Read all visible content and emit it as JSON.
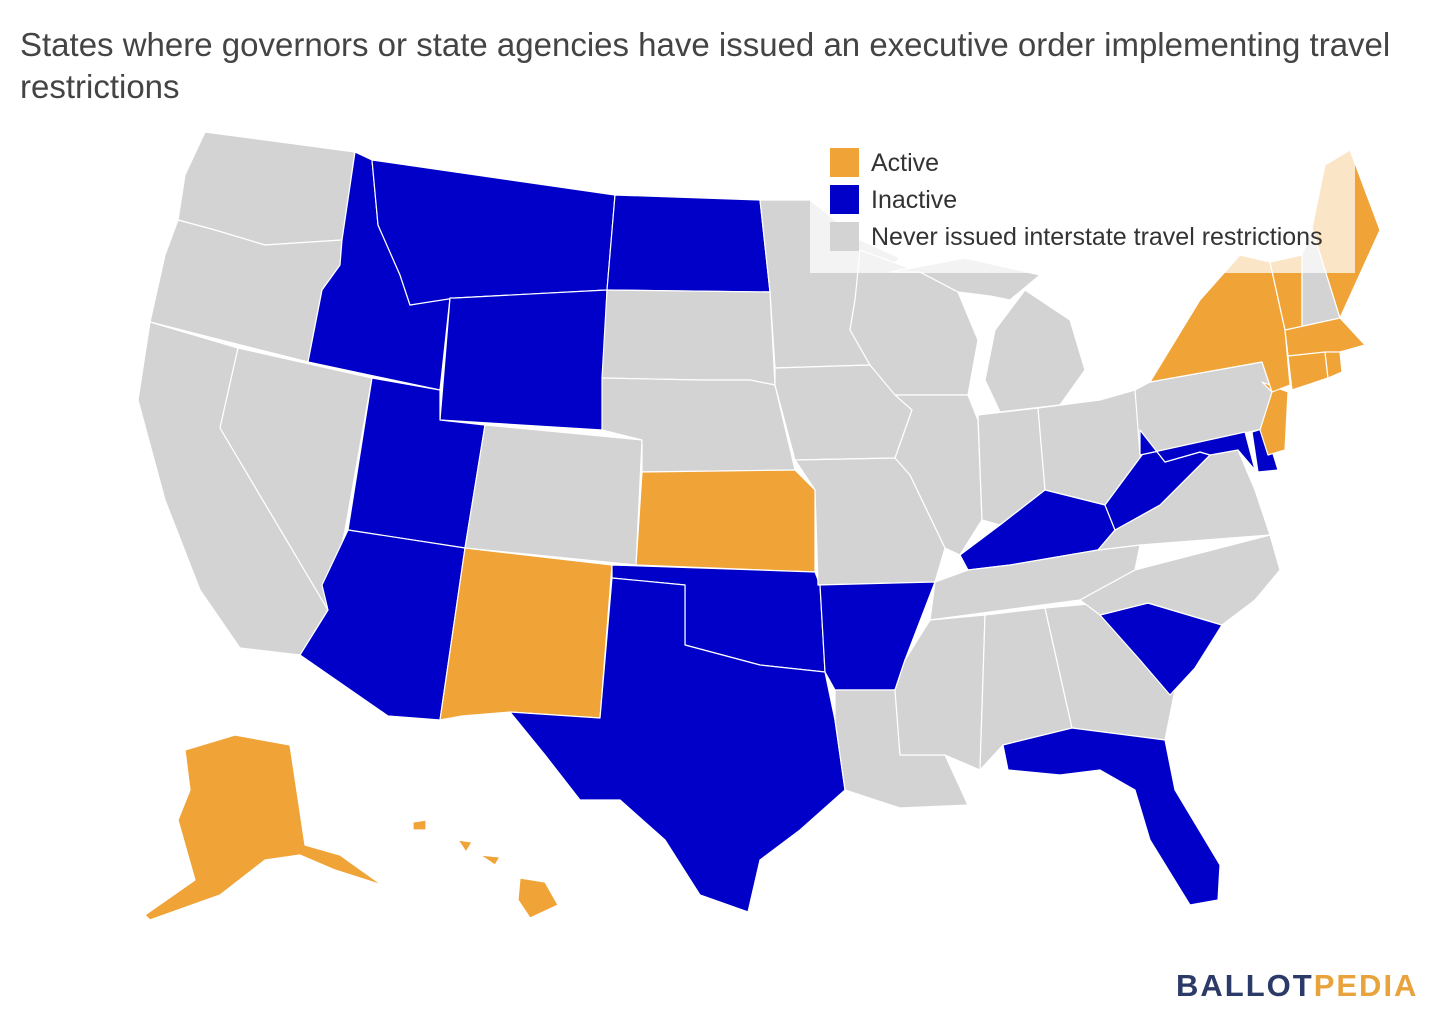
{
  "title": "States where governors or state agencies have issued an executive order implementing travel restrictions",
  "legend": [
    {
      "label": "Active",
      "color": "#F0A336"
    },
    {
      "label": "Inactive",
      "color": "#0000C9"
    },
    {
      "label": "Never issued interstate travel restrictions",
      "color": "#D3D3D3"
    }
  ],
  "colors": {
    "active": "#F0A336",
    "inactive": "#0000C9",
    "never": "#D3D3D3",
    "border": "#FFFFFF"
  },
  "states": {
    "WA": "never",
    "OR": "never",
    "CA": "never",
    "NV": "never",
    "ID": "inactive",
    "MT": "inactive",
    "WY": "inactive",
    "UT": "inactive",
    "AZ": "inactive",
    "CO": "never",
    "NM": "active",
    "ND": "inactive",
    "SD": "never",
    "NE": "never",
    "KS": "active",
    "OK": "inactive",
    "TX": "inactive",
    "MN": "never",
    "IA": "never",
    "MO": "never",
    "AR": "inactive",
    "LA": "never",
    "WI": "never",
    "IL": "never",
    "MI": "never",
    "IN": "never",
    "OH": "never",
    "KY": "inactive",
    "TN": "never",
    "MS": "never",
    "AL": "never",
    "GA": "never",
    "FL": "inactive",
    "SC": "inactive",
    "NC": "never",
    "VA": "never",
    "WV": "inactive",
    "MD": "inactive",
    "DE": "inactive",
    "PA": "never",
    "NJ": "active",
    "NY": "active",
    "CT": "active",
    "RI": "active",
    "MA": "active",
    "VT": "active",
    "NH": "never",
    "ME": "active",
    "AK": "active",
    "HI": "active"
  },
  "logo": {
    "part1": "BALLOT",
    "part2": "PEDIA"
  }
}
